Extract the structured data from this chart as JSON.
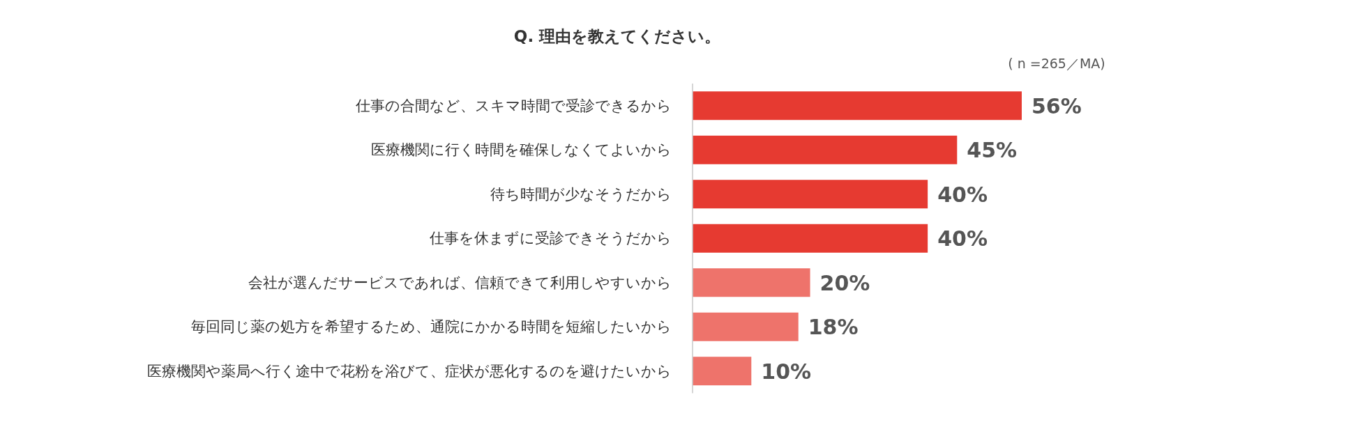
{
  "chart_data": {
    "type": "bar",
    "orientation": "horizontal",
    "title": "Q. 理由を教えてください。",
    "annotations": [
      "( n =265／MA)"
    ],
    "categories": [
      "仕事の合間など、スキマ時間で受診できるから",
      "医療機関に行く時間を確保しなくてよいから",
      "待ち時間が少なそうだから",
      "仕事を休まずに受診できそうだから",
      "会社が選んだサービスであれば、信頼できて利用しやすいから",
      "毎回同じ薬の処方を希望するため、通院にかかる時間を短縮したいから",
      "医療機関や薬局へ行く途中で花粉を浴びて、症状が悪化するのを避けたいから"
    ],
    "values": [
      56,
      45,
      40,
      40,
      20,
      18,
      10
    ],
    "value_labels": [
      "56%",
      "45%",
      "40%",
      "40%",
      "20%",
      "18%",
      "10%"
    ],
    "colors": [
      "#e63a31",
      "#e63a31",
      "#e63a31",
      "#e63a31",
      "#ee736b",
      "#ee736b",
      "#ee736b"
    ]
  }
}
